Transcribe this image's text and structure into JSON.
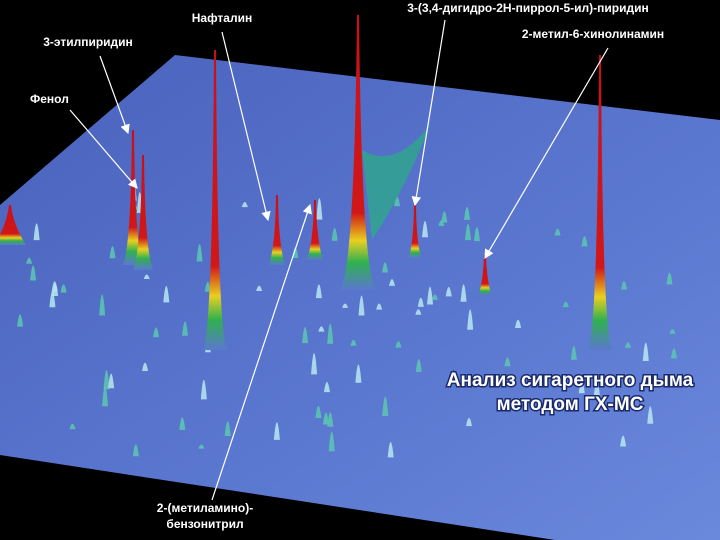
{
  "annotations": [
    "Нафталин",
    "3-этилпиридин",
    "Фенол",
    "3-(3,4-дигидро-2Н-пиррол-5-ил)-пиридин",
    "2-метил-6-хинолинамин",
    "2-(метиламино)-",
    "бензонитрил"
  ],
  "caption": [
    "Анализ сигаретного дыма",
    "методом ГХ-МС"
  ]
}
